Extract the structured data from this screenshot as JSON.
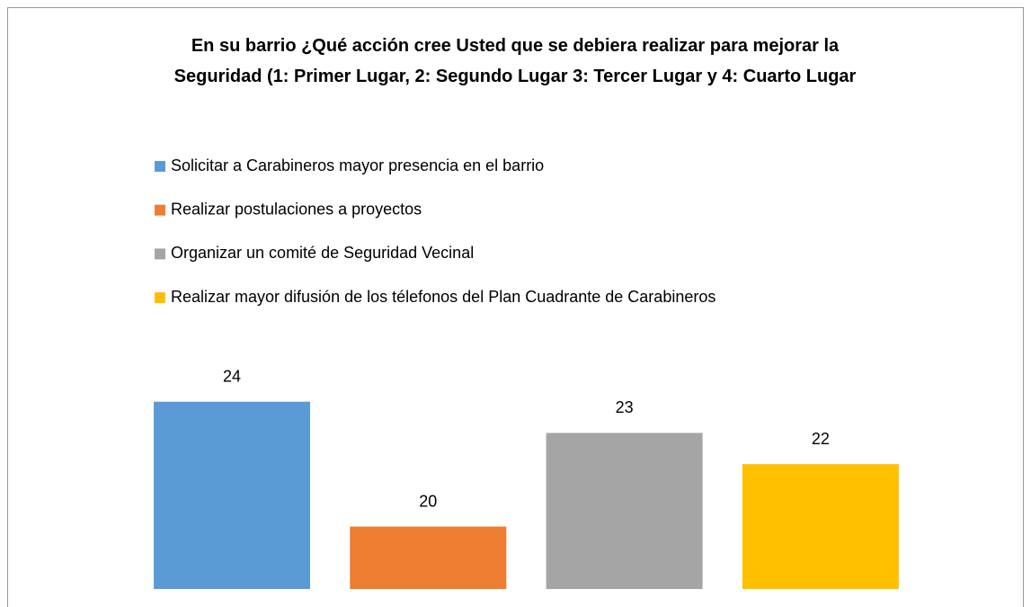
{
  "chart_data": {
    "type": "bar",
    "title": "En su barrio ¿Qué acción cree Usted que se debiera realizar para mejorar la Seguridad  (1: Primer Lugar, 2: Segundo Lugar 3: Tercer Lugar y 4: Cuarto Lugar",
    "categories": [
      null
    ],
    "series": [
      {
        "name": "Solicitar a Carabineros mayor presencia en el barrio",
        "color": "#5b9bd5",
        "values": [
          24
        ]
      },
      {
        "name": "Realizar postulaciones a proyectos",
        "color": "#ed7d31",
        "values": [
          20
        ]
      },
      {
        "name": "Organizar un comité de Seguridad Vecinal",
        "color": "#a5a5a5",
        "values": [
          23
        ]
      },
      {
        "name": "Realizar mayor difusión de los télefonos del Plan Cuadrante de Carabineros",
        "color": "#ffc000",
        "values": [
          22
        ]
      }
    ],
    "ylim": [
      18,
      25
    ],
    "legend": "top-left"
  }
}
